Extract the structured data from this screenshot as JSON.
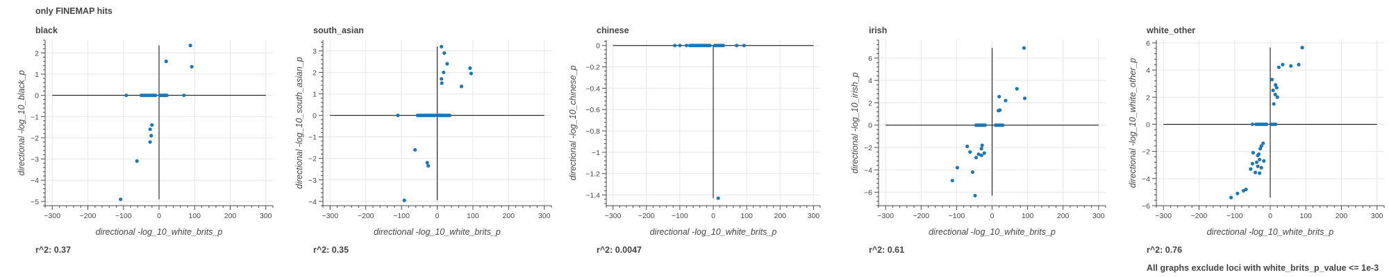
{
  "page_title": "only FINEMAP hits",
  "footnote": "All graphs exclude loci with white_brits_p_value <= 1e-3",
  "colors": {
    "point": "#1f77b4",
    "axis": "#444444",
    "grid": "#e6e6e6",
    "refline": "#000000"
  },
  "chart_data": [
    {
      "type": "scatter",
      "title": "black",
      "xlabel": "directional -log_10_white_brits_p",
      "ylabel": "directional -log_10_black_p",
      "xlim": [
        -320,
        320
      ],
      "ylim": [
        -5.2,
        2.6
      ],
      "xticks": [
        -300,
        -200,
        -100,
        0,
        100,
        200,
        300
      ],
      "xtick_labels": [
        "−300",
        "−200",
        "−100",
        "0",
        "100",
        "200",
        "300"
      ],
      "yticks": [
        -5,
        -4,
        -3,
        -2,
        -1,
        0,
        1,
        2
      ],
      "ytick_labels": [
        "−5",
        "−4",
        "−3",
        "−2",
        "−1",
        "0",
        "1",
        "2"
      ],
      "r2_label": "r^2: 0.37",
      "points": [
        [
          -92,
          0
        ],
        [
          -50,
          0
        ],
        [
          -45,
          0
        ],
        [
          -40,
          0
        ],
        [
          -35,
          0
        ],
        [
          -30,
          0
        ],
        [
          -25,
          0
        ],
        [
          -20,
          0
        ],
        [
          -15,
          0
        ],
        [
          -10,
          0
        ],
        [
          2,
          0
        ],
        [
          5,
          0
        ],
        [
          8,
          0
        ],
        [
          12,
          0
        ],
        [
          15,
          0
        ],
        [
          18,
          0
        ],
        [
          22,
          0
        ],
        [
          70,
          0
        ],
        [
          -108,
          -4.9
        ],
        [
          -62,
          -3.1
        ],
        [
          -25,
          -1.6
        ],
        [
          -20,
          -1.4
        ],
        [
          -22,
          -1.9
        ],
        [
          -25,
          -2.2
        ],
        [
          20,
          1.6
        ],
        [
          88,
          2.35
        ],
        [
          92,
          1.35
        ]
      ]
    },
    {
      "type": "scatter",
      "title": "south_asian",
      "xlabel": "directional -log_10_white_brits_p",
      "ylabel": "directional -log_10_south_asian_p",
      "xlim": [
        -320,
        320
      ],
      "ylim": [
        -4.2,
        3.5
      ],
      "xticks": [
        -300,
        -200,
        -100,
        0,
        100,
        200,
        300
      ],
      "xtick_labels": [
        "−300",
        "−200",
        "−100",
        "0",
        "100",
        "200",
        "300"
      ],
      "yticks": [
        -4,
        -3,
        -2,
        -1,
        0,
        1,
        2,
        3
      ],
      "ytick_labels": [
        "−4",
        "−3",
        "−2",
        "−1",
        "0",
        "1",
        "2",
        "3"
      ],
      "r2_label": "r^2: 0.35",
      "points": [
        [
          -110,
          0
        ],
        [
          -55,
          0
        ],
        [
          -50,
          0
        ],
        [
          -45,
          0
        ],
        [
          -40,
          0
        ],
        [
          -35,
          0
        ],
        [
          -30,
          0
        ],
        [
          -25,
          0
        ],
        [
          -20,
          0
        ],
        [
          -15,
          0
        ],
        [
          -10,
          0
        ],
        [
          -5,
          0
        ],
        [
          5,
          0
        ],
        [
          8,
          0
        ],
        [
          12,
          0
        ],
        [
          15,
          0
        ],
        [
          20,
          0
        ],
        [
          25,
          0
        ],
        [
          30,
          0
        ],
        [
          35,
          0
        ],
        [
          -92,
          -3.95
        ],
        [
          -62,
          -1.6
        ],
        [
          -28,
          -2.2
        ],
        [
          -25,
          -2.35
        ],
        [
          12,
          3.2
        ],
        [
          20,
          2.9
        ],
        [
          28,
          2.4
        ],
        [
          18,
          2.0
        ],
        [
          12,
          1.7
        ],
        [
          13,
          1.5
        ],
        [
          68,
          1.35
        ],
        [
          92,
          2.2
        ],
        [
          95,
          1.95
        ]
      ]
    },
    {
      "type": "scatter",
      "title": "chinese",
      "xlabel": "directional -log_10_white_brits_p",
      "ylabel": "directional -log_10_chinese_p",
      "xlim": [
        -320,
        320
      ],
      "ylim": [
        -1.5,
        0.05
      ],
      "xticks": [
        -300,
        -200,
        -100,
        0,
        100,
        200,
        300
      ],
      "xtick_labels": [
        "−300",
        "−200",
        "−100",
        "0",
        "100",
        "200",
        "300"
      ],
      "yticks": [
        -1.4,
        -1.2,
        -1,
        -0.8,
        -0.6,
        -0.4,
        -0.2,
        0
      ],
      "ytick_labels": [
        "−1.4",
        "−1.2",
        "−1",
        "−0.8",
        "−0.6",
        "−0.4",
        "−0.2",
        "0"
      ],
      "r2_label": "r^2: 0.0047",
      "points": [
        [
          -115,
          0
        ],
        [
          -100,
          0
        ],
        [
          -80,
          0
        ],
        [
          -70,
          0
        ],
        [
          -65,
          0
        ],
        [
          -60,
          0
        ],
        [
          -55,
          0
        ],
        [
          -50,
          0
        ],
        [
          -45,
          0
        ],
        [
          -40,
          0
        ],
        [
          -35,
          0
        ],
        [
          -30,
          0
        ],
        [
          -25,
          0
        ],
        [
          -20,
          0
        ],
        [
          -15,
          0
        ],
        [
          -10,
          0
        ],
        [
          5,
          0
        ],
        [
          10,
          0
        ],
        [
          15,
          0
        ],
        [
          20,
          0
        ],
        [
          25,
          0
        ],
        [
          30,
          0
        ],
        [
          70,
          0
        ],
        [
          92,
          0
        ],
        [
          15,
          -1.43
        ]
      ]
    },
    {
      "type": "scatter",
      "title": "irish",
      "xlabel": "directional -log_10_white_brits_p",
      "ylabel": "directional -log_10_irish_p",
      "xlim": [
        -320,
        320
      ],
      "ylim": [
        -7.2,
        7.6
      ],
      "xticks": [
        -300,
        -200,
        -100,
        0,
        100,
        200,
        300
      ],
      "xtick_labels": [
        "−300",
        "−200",
        "−100",
        "0",
        "100",
        "200",
        "300"
      ],
      "yticks": [
        -6,
        -4,
        -2,
        0,
        2,
        4,
        6
      ],
      "ytick_labels": [
        "−6",
        "−4",
        "−2",
        "0",
        "2",
        "4",
        "6"
      ],
      "r2_label": "r^2: 0.61",
      "points": [
        [
          -45,
          0
        ],
        [
          -40,
          0
        ],
        [
          -35,
          0
        ],
        [
          -30,
          0
        ],
        [
          -25,
          0
        ],
        [
          -20,
          0
        ],
        [
          10,
          0
        ],
        [
          15,
          0
        ],
        [
          20,
          0
        ],
        [
          25,
          0
        ],
        [
          30,
          0
        ],
        [
          -112,
          -4.95
        ],
        [
          -98,
          -3.8
        ],
        [
          -70,
          -1.9
        ],
        [
          -62,
          -2.4
        ],
        [
          -55,
          -4.2
        ],
        [
          -48,
          -6.3
        ],
        [
          -45,
          -2.9
        ],
        [
          -38,
          -2.6
        ],
        [
          -30,
          -2.7
        ],
        [
          -30,
          -2.1
        ],
        [
          -28,
          -1.8
        ],
        [
          -22,
          -2.5
        ],
        [
          18,
          1.3
        ],
        [
          22,
          1.35
        ],
        [
          20,
          2.55
        ],
        [
          38,
          2.2
        ],
        [
          70,
          3.25
        ],
        [
          90,
          6.9
        ],
        [
          92,
          2.4
        ]
      ]
    },
    {
      "type": "scatter",
      "title": "white_other",
      "xlabel": "directional -log_10_white_brits_p",
      "ylabel": "directional -log_10_white_other_p",
      "xlim": [
        -320,
        320
      ],
      "ylim": [
        -6,
        6.2
      ],
      "xticks": [
        -300,
        -200,
        -100,
        0,
        100,
        200,
        300
      ],
      "xtick_labels": [
        "−300",
        "−200",
        "−100",
        "0",
        "100",
        "200",
        "300"
      ],
      "yticks": [
        -6,
        -4,
        -2,
        0,
        2,
        4,
        6
      ],
      "ytick_labels": [
        "−6",
        "−4",
        "−2",
        "0",
        "2",
        "4",
        "6"
      ],
      "r2_label": "r^2: 0.76",
      "points": [
        [
          -50,
          0
        ],
        [
          -40,
          0
        ],
        [
          -35,
          0
        ],
        [
          -30,
          0
        ],
        [
          -25,
          0
        ],
        [
          -20,
          0
        ],
        [
          -15,
          0
        ],
        [
          -10,
          0
        ],
        [
          5,
          0
        ],
        [
          10,
          0
        ],
        [
          15,
          0
        ],
        [
          -110,
          -5.4
        ],
        [
          -92,
          -5.1
        ],
        [
          -75,
          -4.9
        ],
        [
          -68,
          -4.8
        ],
        [
          -55,
          -3.3
        ],
        [
          -50,
          -2.9
        ],
        [
          -48,
          -2.1
        ],
        [
          -42,
          -3.55
        ],
        [
          -38,
          -2.8
        ],
        [
          -35,
          -2.3
        ],
        [
          -32,
          -2.2
        ],
        [
          -30,
          -2.6
        ],
        [
          -28,
          -1.8
        ],
        [
          -25,
          -1.6
        ],
        [
          -20,
          -1.4
        ],
        [
          -18,
          -2.7
        ],
        [
          -25,
          -3.2
        ],
        [
          -30,
          -3.6
        ],
        [
          -35,
          -3.1
        ],
        [
          5,
          3.3
        ],
        [
          8,
          2.5
        ],
        [
          10,
          1.5
        ],
        [
          14,
          2.2
        ],
        [
          15,
          2.9
        ],
        [
          18,
          2.7
        ],
        [
          20,
          2.0
        ],
        [
          24,
          4.2
        ],
        [
          58,
          4.3
        ],
        [
          80,
          4.4
        ],
        [
          90,
          5.65
        ],
        [
          35,
          4.4
        ]
      ]
    }
  ]
}
